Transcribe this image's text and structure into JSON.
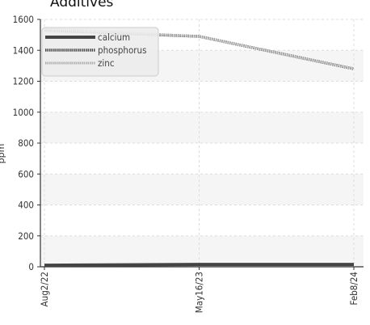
{
  "chart_data": {
    "type": "line",
    "title": "Additives",
    "xlabel": "",
    "ylabel": "ppm",
    "categories": [
      "Aug2/22",
      "May16/23",
      "Feb8/24"
    ],
    "ylim": [
      0,
      1600
    ],
    "yticks": [
      0,
      200,
      400,
      600,
      800,
      1000,
      1200,
      1400,
      1600
    ],
    "grid": true,
    "legend_position": "top-left",
    "series": [
      {
        "name": "calcium",
        "values": [
          10,
          15,
          15
        ],
        "color": "#444444"
      },
      {
        "name": "phosphorus",
        "values": [
          1530,
          1490,
          1280
        ],
        "color": "#444444"
      },
      {
        "name": "zinc",
        "values": [
          1540,
          1490,
          1280
        ],
        "color": "#aaaaaa"
      }
    ]
  }
}
